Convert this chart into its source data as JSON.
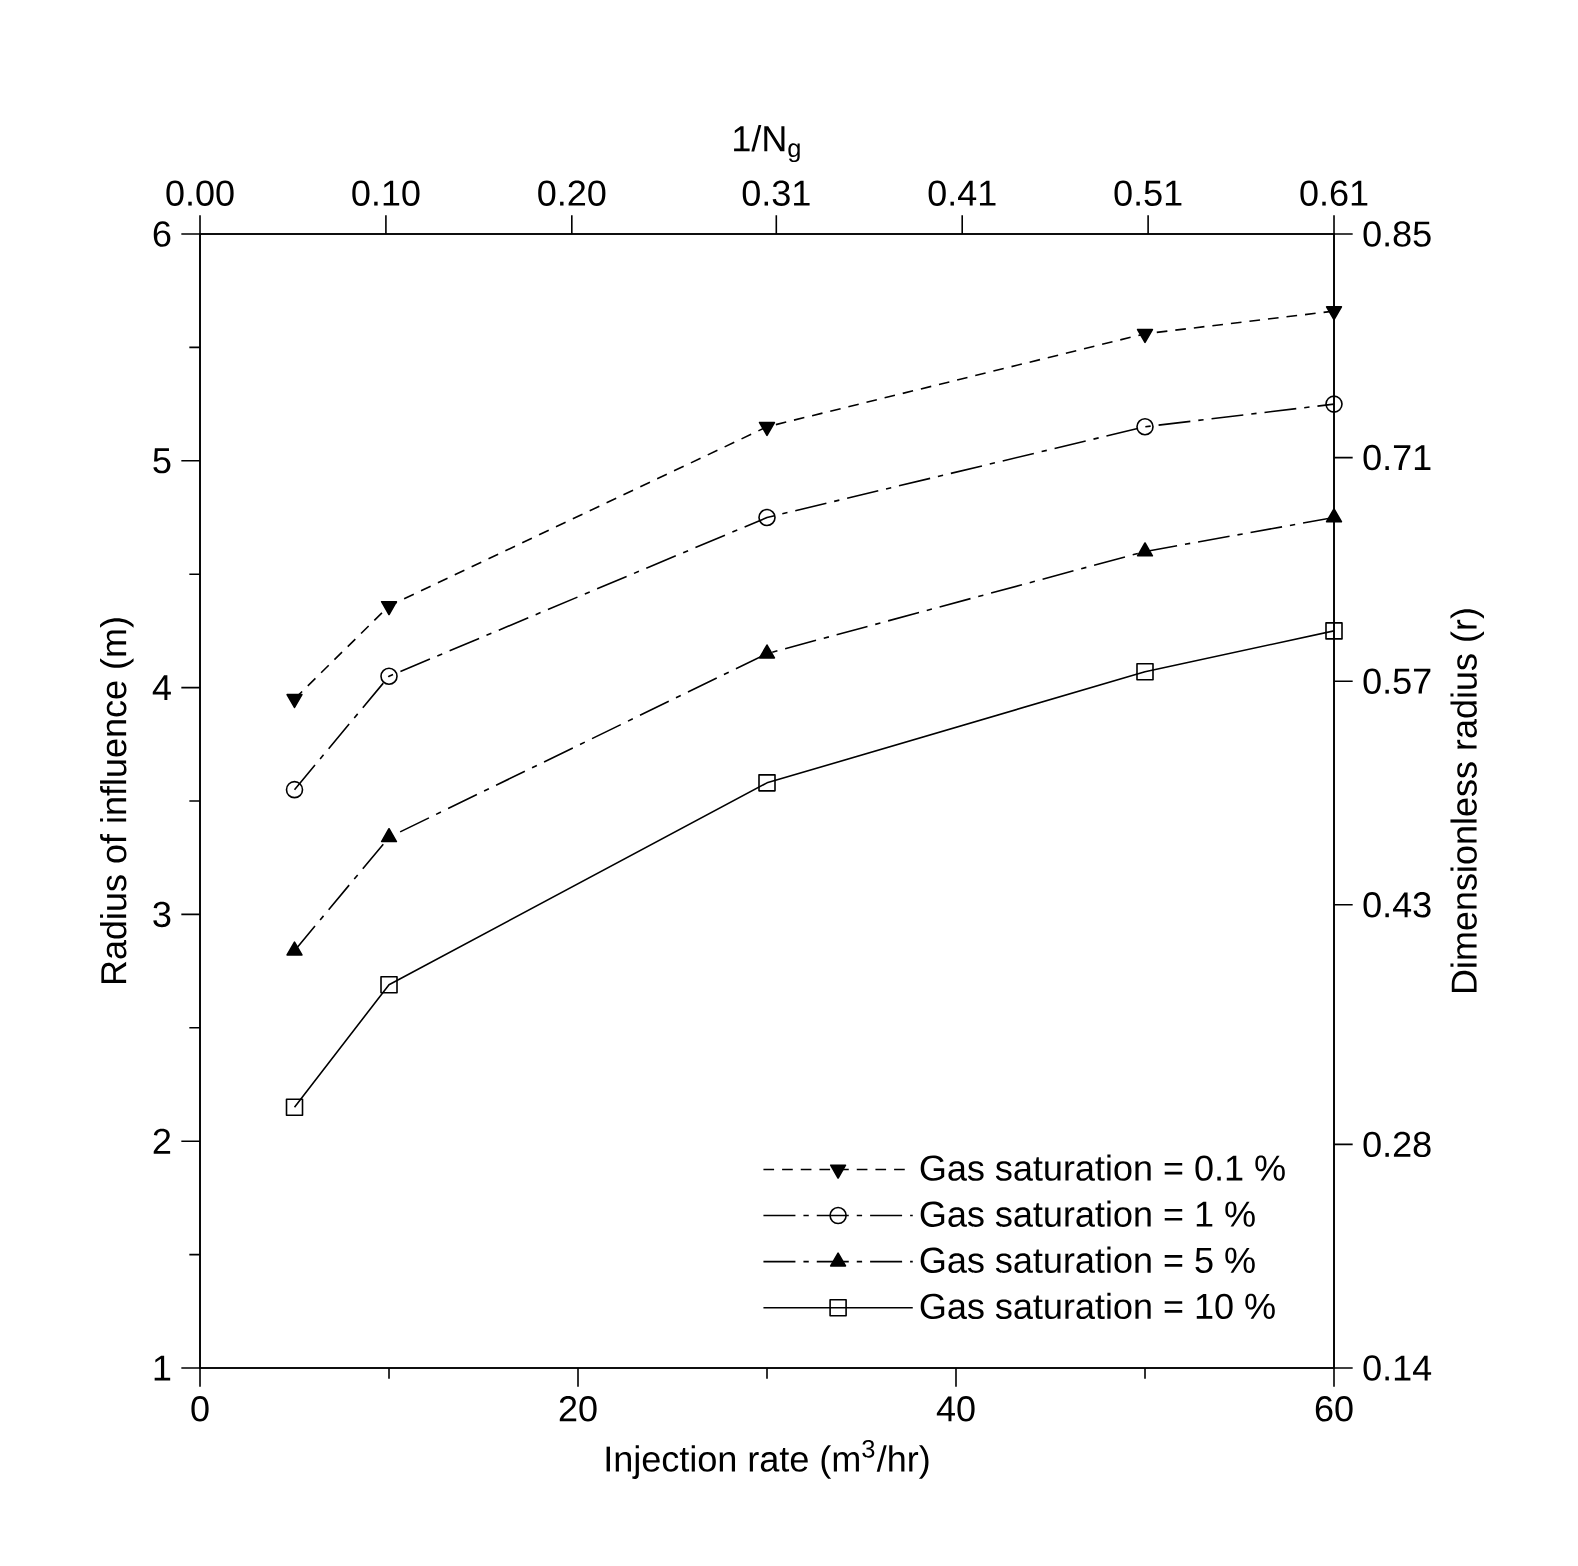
{
  "chart_data": {
    "type": "line",
    "xlabel": "Injection rate (m$^{3}$/hr)",
    "ylabel": "Radius of influence (m)",
    "x2label": "1/N$_{g}$",
    "y2label": "Dimensionless radius (r)",
    "x": [
      5,
      10,
      30,
      50,
      60
    ],
    "xlim": [
      0,
      60
    ],
    "xticks": [
      0,
      20,
      40,
      60
    ],
    "ylim": [
      1,
      6
    ],
    "yticks": [
      1,
      2,
      3,
      4,
      5,
      6
    ],
    "x2lim": [
      0,
      0.61
    ],
    "x2ticks": [
      {
        "value": 0,
        "label": "0.00"
      },
      {
        "value": 0.1,
        "label": "0.10"
      },
      {
        "value": 0.2,
        "label": "0.20"
      },
      0.31,
      0.41,
      0.51,
      0.61
    ],
    "y2lim": [
      0.14,
      0.85
    ],
    "y2ticks": [
      0.14,
      0.28,
      0.43,
      0.57,
      0.71,
      0.85
    ],
    "legend": "bottom right",
    "grid": false,
    "series": [
      {
        "name": "Gas saturation = 0.1 %",
        "color": "#000000",
        "marker": "triangle-down",
        "line_style": "dashed",
        "values": [
          3.95,
          4.36,
          5.15,
          5.56,
          5.66
        ]
      },
      {
        "name": "Gas saturation = 1 %",
        "color": "#000000",
        "marker": "circle",
        "line_style": "dashdot",
        "values": [
          3.55,
          4.05,
          4.75,
          5.15,
          5.25
        ]
      },
      {
        "name": "Gas saturation = 5 %",
        "color": "#000000",
        "marker": "triangle",
        "line_style": "dashdot",
        "values": [
          2.84,
          3.34,
          4.15,
          4.6,
          4.75
        ]
      },
      {
        "name": "Gas saturation = 10 %",
        "color": "#000000",
        "marker": "square",
        "line_style": "solid",
        "values": [
          2.15,
          2.69,
          3.58,
          4.07,
          4.25
        ]
      }
    ]
  }
}
